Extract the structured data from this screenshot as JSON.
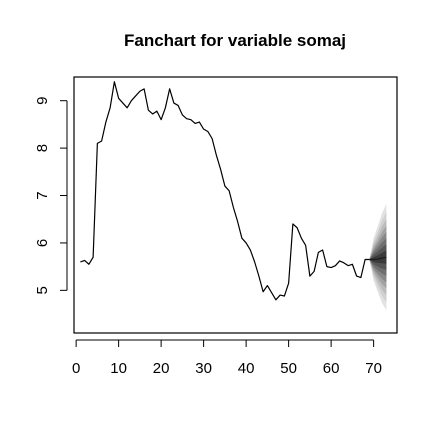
{
  "chart_data": {
    "type": "line",
    "title": "Fanchart for variable somaj",
    "xlabel": "",
    "ylabel": "",
    "xlim": [
      -0.5,
      75.5
    ],
    "ylim": [
      4.1,
      9.5
    ],
    "x_ticks": [
      0,
      10,
      20,
      30,
      40,
      50,
      60,
      70
    ],
    "y_ticks": [
      5,
      6,
      7,
      8,
      9
    ],
    "grid": false,
    "series": [
      {
        "values": [
          {
            "x": 1,
            "y": 5.6
          },
          {
            "x": 2,
            "y": 5.63
          },
          {
            "x": 3,
            "y": 5.55
          },
          {
            "x": 4,
            "y": 5.7
          },
          {
            "x": 5,
            "y": 8.1
          },
          {
            "x": 6,
            "y": 8.15
          },
          {
            "x": 7,
            "y": 8.55
          },
          {
            "x": 8,
            "y": 8.85
          },
          {
            "x": 9,
            "y": 9.4
          },
          {
            "x": 10,
            "y": 9.05
          },
          {
            "x": 11,
            "y": 8.95
          },
          {
            "x": 12,
            "y": 8.85
          },
          {
            "x": 13,
            "y": 9.0
          },
          {
            "x": 14,
            "y": 9.1
          },
          {
            "x": 15,
            "y": 9.2
          },
          {
            "x": 16,
            "y": 9.25
          },
          {
            "x": 17,
            "y": 8.8
          },
          {
            "x": 18,
            "y": 8.72
          },
          {
            "x": 19,
            "y": 8.78
          },
          {
            "x": 20,
            "y": 8.6
          },
          {
            "x": 21,
            "y": 8.85
          },
          {
            "x": 22,
            "y": 9.25
          },
          {
            "x": 23,
            "y": 8.95
          },
          {
            "x": 24,
            "y": 8.9
          },
          {
            "x": 25,
            "y": 8.7
          },
          {
            "x": 26,
            "y": 8.62
          },
          {
            "x": 27,
            "y": 8.6
          },
          {
            "x": 28,
            "y": 8.52
          },
          {
            "x": 29,
            "y": 8.55
          },
          {
            "x": 30,
            "y": 8.4
          },
          {
            "x": 31,
            "y": 8.35
          },
          {
            "x": 32,
            "y": 8.2
          },
          {
            "x": 33,
            "y": 7.85
          },
          {
            "x": 34,
            "y": 7.55
          },
          {
            "x": 35,
            "y": 7.2
          },
          {
            "x": 36,
            "y": 7.1
          },
          {
            "x": 37,
            "y": 6.75
          },
          {
            "x": 38,
            "y": 6.45
          },
          {
            "x": 39,
            "y": 6.1
          },
          {
            "x": 40,
            "y": 6.0
          },
          {
            "x": 41,
            "y": 5.85
          },
          {
            "x": 42,
            "y": 5.6
          },
          {
            "x": 43,
            "y": 5.3
          },
          {
            "x": 44,
            "y": 4.97
          },
          {
            "x": 45,
            "y": 5.1
          },
          {
            "x": 46,
            "y": 4.95
          },
          {
            "x": 47,
            "y": 4.8
          },
          {
            "x": 48,
            "y": 4.9
          },
          {
            "x": 49,
            "y": 4.88
          },
          {
            "x": 50,
            "y": 5.15
          },
          {
            "x": 51,
            "y": 6.4
          },
          {
            "x": 52,
            "y": 6.32
          },
          {
            "x": 53,
            "y": 6.1
          },
          {
            "x": 54,
            "y": 5.95
          },
          {
            "x": 55,
            "y": 5.3
          },
          {
            "x": 56,
            "y": 5.4
          },
          {
            "x": 57,
            "y": 5.8
          },
          {
            "x": 58,
            "y": 5.85
          },
          {
            "x": 59,
            "y": 5.5
          },
          {
            "x": 60,
            "y": 5.48
          },
          {
            "x": 61,
            "y": 5.52
          },
          {
            "x": 62,
            "y": 5.62
          },
          {
            "x": 63,
            "y": 5.58
          },
          {
            "x": 64,
            "y": 5.52
          },
          {
            "x": 65,
            "y": 5.55
          },
          {
            "x": 66,
            "y": 5.3
          },
          {
            "x": 67,
            "y": 5.27
          },
          {
            "x": 68,
            "y": 5.65
          },
          {
            "x": 69,
            "y": 5.65
          }
        ],
        "color": "#000000"
      }
    ],
    "forecast": {
      "x": [
        69,
        70,
        71,
        72,
        73
      ],
      "center": [
        5.65,
        5.65,
        5.66,
        5.68,
        5.7
      ],
      "bands": [
        {
          "level": 0.1,
          "lower": [
            5.65,
            5.6,
            5.58,
            5.57,
            5.56
          ],
          "upper": [
            5.65,
            5.7,
            5.74,
            5.79,
            5.84
          ],
          "color": "#3a3a3a"
        },
        {
          "level": 0.2,
          "lower": [
            5.65,
            5.55,
            5.5,
            5.46,
            5.43
          ],
          "upper": [
            5.65,
            5.75,
            5.82,
            5.9,
            5.97
          ],
          "color": "#555555"
        },
        {
          "level": 0.3,
          "lower": [
            5.65,
            5.5,
            5.42,
            5.35,
            5.3
          ],
          "upper": [
            5.65,
            5.8,
            5.9,
            6.01,
            6.1
          ],
          "color": "#6e6e6e"
        },
        {
          "level": 0.4,
          "lower": [
            5.65,
            5.45,
            5.34,
            5.24,
            5.17
          ],
          "upper": [
            5.65,
            5.85,
            5.98,
            6.12,
            6.23
          ],
          "color": "#888888"
        },
        {
          "level": 0.5,
          "lower": [
            5.65,
            5.4,
            5.26,
            5.13,
            5.04
          ],
          "upper": [
            5.65,
            5.9,
            6.06,
            6.23,
            6.36
          ],
          "color": "#a2a2a2"
        },
        {
          "level": 0.6,
          "lower": [
            5.65,
            5.34,
            5.17,
            5.01,
            4.9
          ],
          "upper": [
            5.65,
            5.96,
            6.15,
            6.35,
            6.5
          ],
          "color": "#bbbbbb"
        },
        {
          "level": 0.7,
          "lower": [
            5.65,
            5.28,
            5.07,
            4.88,
            4.75
          ],
          "upper": [
            5.65,
            6.02,
            6.25,
            6.48,
            6.65
          ],
          "color": "#d0d0d0"
        },
        {
          "level": 0.8,
          "lower": [
            5.65,
            5.2,
            4.96,
            4.73,
            4.58
          ],
          "upper": [
            5.65,
            6.1,
            6.36,
            6.63,
            6.82
          ],
          "color": "#e2e2e2"
        }
      ]
    }
  }
}
